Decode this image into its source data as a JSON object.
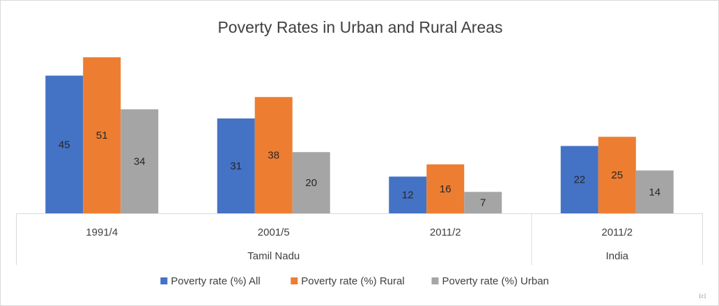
{
  "chart_data": {
    "type": "bar",
    "title": "Poverty Rates in Urban and Rural Areas",
    "categories": [
      "1991/4",
      "2001/5",
      "2011/2",
      "2011/2"
    ],
    "groups": [
      {
        "label": "Tamil Nadu",
        "categories": [
          "1991/4",
          "2001/5",
          "2011/2"
        ]
      },
      {
        "label": "India",
        "categories": [
          "2011/2"
        ]
      }
    ],
    "series": [
      {
        "name": "Poverty rate (%) All",
        "color": "#4472c4",
        "values": [
          45,
          31,
          12,
          22
        ]
      },
      {
        "name": "Poverty rate (%) Rural",
        "color": "#ed7d31",
        "values": [
          51,
          38,
          16,
          25
        ]
      },
      {
        "name": "Poverty rate (%) Urban",
        "color": "#a5a5a5",
        "values": [
          34,
          20,
          7,
          14
        ]
      }
    ],
    "ylim": [
      0,
      54
    ],
    "grid": false,
    "legend": "bottom",
    "watermark": "[c]"
  }
}
